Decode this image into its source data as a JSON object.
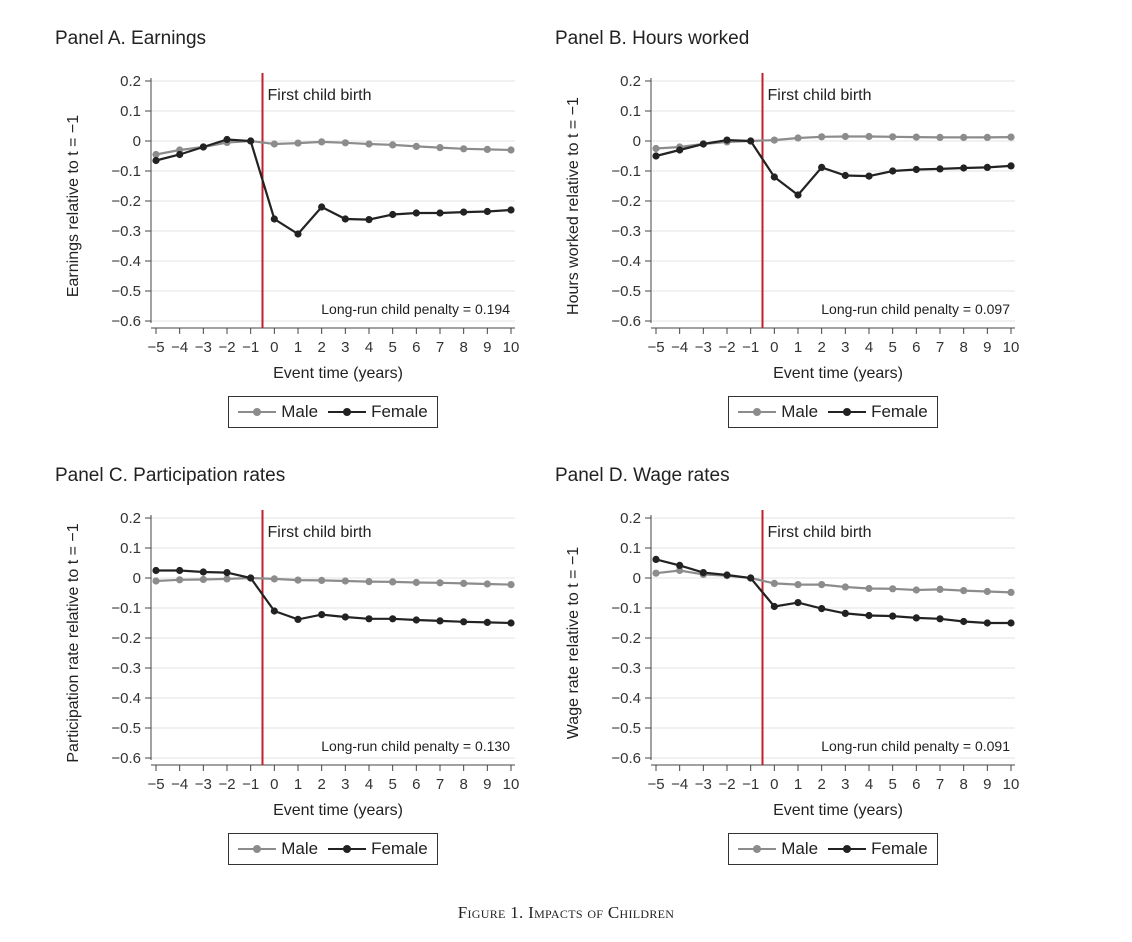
{
  "chart_data": [
    {
      "type": "line",
      "title": "Panel A. Earnings",
      "xlabel": "Event time (years)",
      "ylabel": "Earnings relative to t = −1",
      "x": [
        -5,
        -4,
        -3,
        -2,
        -1,
        0,
        1,
        2,
        3,
        4,
        5,
        6,
        7,
        8,
        9,
        10
      ],
      "xlim": [
        -5,
        10
      ],
      "ylim": [
        -0.6,
        0.2
      ],
      "yticks": [
        "0.2",
        "0.1",
        "0",
        "−0.1",
        "−0.2",
        "−0.3",
        "−0.4",
        "−0.5",
        "−0.6"
      ],
      "xticks": [
        "−5",
        "−4",
        "−3",
        "−2",
        "−1",
        "0",
        "1",
        "2",
        "3",
        "4",
        "5",
        "6",
        "7",
        "8",
        "9",
        "10"
      ],
      "series": [
        {
          "name": "Male",
          "color": "#8c8c8c",
          "values": [
            -0.045,
            -0.03,
            -0.02,
            -0.005,
            0,
            -0.01,
            -0.007,
            -0.003,
            -0.006,
            -0.01,
            -0.013,
            -0.018,
            -0.022,
            -0.026,
            -0.028,
            -0.03
          ]
        },
        {
          "name": "Female",
          "color": "#222222",
          "values": [
            -0.065,
            -0.045,
            -0.02,
            0.005,
            0,
            -0.26,
            -0.31,
            -0.22,
            -0.26,
            -0.262,
            -0.245,
            -0.24,
            -0.24,
            -0.237,
            -0.235,
            -0.23
          ]
        }
      ],
      "event_line": {
        "x": -0.5,
        "label": "First child birth",
        "color": "#c0202a"
      },
      "annotation": "Long-run child penalty = 0.194",
      "legend": [
        "Male",
        "Female"
      ],
      "legend_position": "bottom",
      "grid": true
    },
    {
      "type": "line",
      "title": "Panel B. Hours worked",
      "xlabel": "Event time (years)",
      "ylabel": "Hours worked relative to t = −1",
      "x": [
        -5,
        -4,
        -3,
        -2,
        -1,
        0,
        1,
        2,
        3,
        4,
        5,
        6,
        7,
        8,
        9,
        10
      ],
      "xlim": [
        -5,
        10
      ],
      "ylim": [
        -0.6,
        0.2
      ],
      "yticks": [
        "0.2",
        "0.1",
        "0",
        "−0.1",
        "−0.2",
        "−0.3",
        "−0.4",
        "−0.5",
        "−0.6"
      ],
      "xticks": [
        "−5",
        "−4",
        "−3",
        "−2",
        "−1",
        "0",
        "1",
        "2",
        "3",
        "4",
        "5",
        "6",
        "7",
        "8",
        "9",
        "10"
      ],
      "series": [
        {
          "name": "Male",
          "color": "#8c8c8c",
          "values": [
            -0.025,
            -0.02,
            -0.01,
            -0.003,
            0,
            0.003,
            0.01,
            0.014,
            0.015,
            0.015,
            0.014,
            0.013,
            0.012,
            0.012,
            0.012,
            0.013
          ]
        },
        {
          "name": "Female",
          "color": "#222222",
          "values": [
            -0.05,
            -0.03,
            -0.01,
            0.003,
            0,
            -0.12,
            -0.18,
            -0.088,
            -0.115,
            -0.117,
            -0.1,
            -0.095,
            -0.093,
            -0.09,
            -0.088,
            -0.083
          ]
        }
      ],
      "event_line": {
        "x": -0.5,
        "label": "First child birth",
        "color": "#c0202a"
      },
      "annotation": "Long-run child penalty = 0.097",
      "legend": [
        "Male",
        "Female"
      ],
      "legend_position": "bottom",
      "grid": true
    },
    {
      "type": "line",
      "title": "Panel C. Participation rates",
      "xlabel": "Event time (years)",
      "ylabel": "Participation rate relative to t = −1",
      "x": [
        -5,
        -4,
        -3,
        -2,
        -1,
        0,
        1,
        2,
        3,
        4,
        5,
        6,
        7,
        8,
        9,
        10
      ],
      "xlim": [
        -5,
        10
      ],
      "ylim": [
        -0.6,
        0.2
      ],
      "yticks": [
        "0.2",
        "0.1",
        "0",
        "−0.1",
        "−0.2",
        "−0.3",
        "−0.4",
        "−0.5",
        "−0.6"
      ],
      "xticks": [
        "−5",
        "−4",
        "−3",
        "−2",
        "−1",
        "0",
        "1",
        "2",
        "3",
        "4",
        "5",
        "6",
        "7",
        "8",
        "9",
        "10"
      ],
      "series": [
        {
          "name": "Male",
          "color": "#8c8c8c",
          "values": [
            -0.01,
            -0.006,
            -0.005,
            -0.003,
            0,
            -0.003,
            -0.007,
            -0.008,
            -0.01,
            -0.012,
            -0.013,
            -0.015,
            -0.016,
            -0.018,
            -0.02,
            -0.022
          ]
        },
        {
          "name": "Female",
          "color": "#222222",
          "values": [
            0.025,
            0.025,
            0.02,
            0.018,
            0,
            -0.11,
            -0.138,
            -0.122,
            -0.13,
            -0.136,
            -0.136,
            -0.14,
            -0.143,
            -0.146,
            -0.148,
            -0.15
          ]
        }
      ],
      "event_line": {
        "x": -0.5,
        "label": "First child birth",
        "color": "#c0202a"
      },
      "annotation": "Long-run child penalty = 0.130",
      "legend": [
        "Male",
        "Female"
      ],
      "legend_position": "bottom",
      "grid": true
    },
    {
      "type": "line",
      "title": "Panel D. Wage rates",
      "xlabel": "Event time (years)",
      "ylabel": "Wage rate relative to t = −1",
      "x": [
        -5,
        -4,
        -3,
        -2,
        -1,
        0,
        1,
        2,
        3,
        4,
        5,
        6,
        7,
        8,
        9,
        10
      ],
      "xlim": [
        -5,
        10
      ],
      "ylim": [
        -0.6,
        0.2
      ],
      "yticks": [
        "0.2",
        "0.1",
        "0",
        "−0.1",
        "−0.2",
        "−0.3",
        "−0.4",
        "−0.5",
        "−0.6"
      ],
      "xticks": [
        "−5",
        "−4",
        "−3",
        "−2",
        "−1",
        "0",
        "1",
        "2",
        "3",
        "4",
        "5",
        "6",
        "7",
        "8",
        "9",
        "10"
      ],
      "series": [
        {
          "name": "Male",
          "color": "#8c8c8c",
          "values": [
            0.016,
            0.025,
            0.012,
            0.008,
            0,
            -0.018,
            -0.022,
            -0.022,
            -0.03,
            -0.035,
            -0.036,
            -0.04,
            -0.038,
            -0.042,
            -0.045,
            -0.048
          ]
        },
        {
          "name": "Female",
          "color": "#222222",
          "values": [
            0.062,
            0.042,
            0.018,
            0.01,
            0,
            -0.095,
            -0.082,
            -0.102,
            -0.118,
            -0.125,
            -0.127,
            -0.133,
            -0.136,
            -0.145,
            -0.15,
            -0.15
          ]
        }
      ],
      "event_line": {
        "x": -0.5,
        "label": "First child birth",
        "color": "#c0202a"
      },
      "annotation": "Long-run child penalty = 0.091",
      "legend": [
        "Male",
        "Female"
      ],
      "legend_position": "bottom",
      "grid": true
    }
  ],
  "caption": "Figure 1. Impacts of Children"
}
